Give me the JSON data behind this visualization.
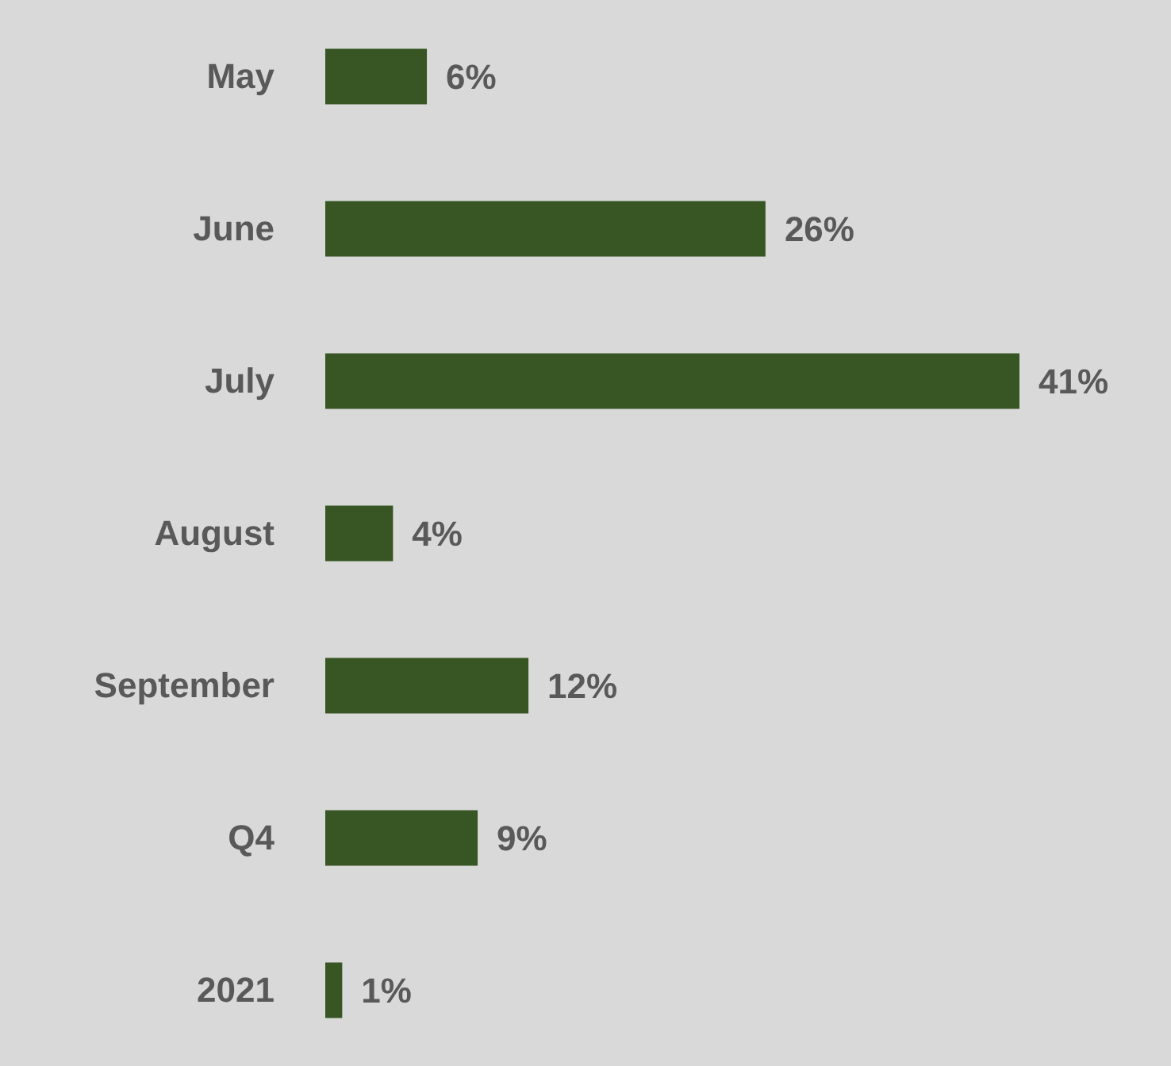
{
  "chart_data": {
    "type": "bar",
    "orientation": "horizontal",
    "categories": [
      "May",
      "June",
      "July",
      "August",
      "September",
      "Q4",
      "2021"
    ],
    "values": [
      6,
      26,
      41,
      4,
      12,
      9,
      1
    ],
    "value_labels": [
      "6%",
      "26%",
      "41%",
      "4%",
      "12%",
      "9%",
      "1%"
    ],
    "color": "#375623"
  }
}
